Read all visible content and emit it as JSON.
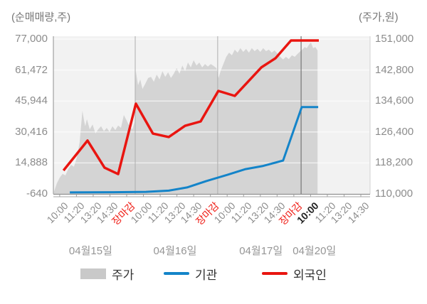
{
  "legend": [
    {
      "label": "주가",
      "type": "area",
      "color": "#c9c9c9"
    },
    {
      "label": "기관",
      "type": "line",
      "color": "#1484c9"
    },
    {
      "label": "외국인",
      "type": "line",
      "color": "#e91510"
    }
  ],
  "chart_data": {
    "type": "area+line",
    "title": "",
    "left_axis": {
      "label": "(순매매량,주)",
      "ticks": [
        77000,
        61472,
        45944,
        30416,
        14888,
        -640
      ],
      "range": [
        -640,
        77000
      ]
    },
    "right_axis": {
      "label": "(주가,원)",
      "ticks": [
        151000,
        142800,
        134600,
        126400,
        118200,
        110000
      ],
      "range": [
        110000,
        151000
      ]
    },
    "x_ticks": [
      {
        "label": "10:00",
        "pct": 2.0,
        "style": "normal"
      },
      {
        "label": "11:20",
        "pct": 7.3,
        "style": "normal"
      },
      {
        "label": "13:20",
        "pct": 12.6,
        "style": "normal"
      },
      {
        "label": "14:30",
        "pct": 17.9,
        "style": "normal"
      },
      {
        "label": "장마감",
        "pct": 23.2,
        "style": "close"
      },
      {
        "label": "10:00",
        "pct": 28.5,
        "style": "normal"
      },
      {
        "label": "11:20",
        "pct": 33.8,
        "style": "normal"
      },
      {
        "label": "13:20",
        "pct": 39.1,
        "style": "normal"
      },
      {
        "label": "14:30",
        "pct": 44.4,
        "style": "normal"
      },
      {
        "label": "장마감",
        "pct": 49.7,
        "style": "close"
      },
      {
        "label": "10:00",
        "pct": 55.0,
        "style": "normal"
      },
      {
        "label": "11:20",
        "pct": 60.2,
        "style": "normal"
      },
      {
        "label": "13:20",
        "pct": 65.5,
        "style": "normal"
      },
      {
        "label": "14:30",
        "pct": 70.8,
        "style": "normal"
      },
      {
        "label": "장마감",
        "pct": 76.1,
        "style": "close"
      },
      {
        "label": "10:00",
        "pct": 81.4,
        "style": "current"
      },
      {
        "label": "11:20",
        "pct": 86.7,
        "style": "normal"
      },
      {
        "label": "13:20",
        "pct": 92.0,
        "style": "normal"
      },
      {
        "label": "14:30",
        "pct": 97.3,
        "style": "normal"
      }
    ],
    "dates": [
      {
        "label": "04월15일",
        "pct": 11.8
      },
      {
        "label": "04월16일",
        "pct": 38.5
      },
      {
        "label": "04월17일",
        "pct": 65.7
      },
      {
        "label": "04월20일",
        "pct": 82.6
      }
    ],
    "day_separators_pct": [
      25.9,
      52.0
    ],
    "current_separator_pct": 78.4,
    "colors": {
      "plot_bg": "#f2f2f2",
      "area_fill": "#d4d4d4",
      "gridline": "rgba(255,255,255,0.6)",
      "day_separator": "#aeaeae",
      "current_separator": "#757575",
      "axis_line": "#8f8f8f",
      "right_border": "#d2d2d2",
      "institution_line": "#1484c9",
      "foreigner_line": "#e91510"
    },
    "series": {
      "price": {
        "name": "주가",
        "axis": "right",
        "type": "area",
        "unit": "원",
        "points": [
          [
            0.2,
            110600
          ],
          [
            1.1,
            112800
          ],
          [
            2.0,
            114300
          ],
          [
            2.9,
            115300
          ],
          [
            3.8,
            114900
          ],
          [
            4.7,
            116600
          ],
          [
            5.6,
            117700
          ],
          [
            6.5,
            117200
          ],
          [
            7.4,
            119600
          ],
          [
            8.3,
            123700
          ],
          [
            9.2,
            132000
          ],
          [
            9.7,
            129400
          ],
          [
            10.1,
            127900
          ],
          [
            10.6,
            129800
          ],
          [
            11.5,
            127100
          ],
          [
            12.4,
            128400
          ],
          [
            13.3,
            126000
          ],
          [
            14.2,
            127100
          ],
          [
            15.1,
            127900
          ],
          [
            16.0,
            126600
          ],
          [
            16.9,
            127500
          ],
          [
            17.8,
            126400
          ],
          [
            18.7,
            127900
          ],
          [
            19.6,
            126900
          ],
          [
            20.5,
            128100
          ],
          [
            21.4,
            127500
          ],
          [
            22.3,
            130900
          ],
          [
            23.2,
            129400
          ],
          [
            24.1,
            127900
          ],
          [
            25.0,
            127100
          ],
          [
            25.7,
            129000
          ],
          [
            26.1,
            142500
          ],
          [
            26.8,
            138800
          ],
          [
            27.5,
            140300
          ],
          [
            28.2,
            137800
          ],
          [
            29.1,
            139200
          ],
          [
            30.0,
            140700
          ],
          [
            30.9,
            141000
          ],
          [
            31.8,
            139700
          ],
          [
            32.7,
            141600
          ],
          [
            33.6,
            140300
          ],
          [
            34.5,
            142500
          ],
          [
            35.4,
            141000
          ],
          [
            36.3,
            142200
          ],
          [
            37.2,
            140700
          ],
          [
            38.1,
            141800
          ],
          [
            39.0,
            143300
          ],
          [
            39.9,
            141800
          ],
          [
            40.8,
            144000
          ],
          [
            41.7,
            142500
          ],
          [
            42.6,
            144800
          ],
          [
            43.5,
            143500
          ],
          [
            44.4,
            145400
          ],
          [
            45.3,
            144000
          ],
          [
            46.2,
            144800
          ],
          [
            47.1,
            143500
          ],
          [
            48.0,
            144400
          ],
          [
            48.9,
            143700
          ],
          [
            49.8,
            144400
          ],
          [
            50.7,
            143900
          ],
          [
            51.6,
            143300
          ],
          [
            52.3,
            140700
          ],
          [
            52.9,
            142500
          ],
          [
            53.8,
            144400
          ],
          [
            54.7,
            146300
          ],
          [
            55.6,
            147400
          ],
          [
            56.5,
            146700
          ],
          [
            57.4,
            148200
          ],
          [
            58.3,
            147400
          ],
          [
            59.2,
            148600
          ],
          [
            60.1,
            147600
          ],
          [
            61.0,
            148400
          ],
          [
            61.9,
            147400
          ],
          [
            62.8,
            148600
          ],
          [
            63.7,
            147800
          ],
          [
            64.6,
            148400
          ],
          [
            65.5,
            147600
          ],
          [
            66.4,
            148600
          ],
          [
            67.3,
            147800
          ],
          [
            68.2,
            148200
          ],
          [
            69.1,
            147400
          ],
          [
            70.0,
            148000
          ],
          [
            70.9,
            147200
          ],
          [
            71.8,
            146300
          ],
          [
            72.7,
            145600
          ],
          [
            73.6,
            146300
          ],
          [
            74.5,
            145700
          ],
          [
            75.5,
            146700
          ],
          [
            76.4,
            146300
          ],
          [
            77.3,
            147100
          ],
          [
            78.2,
            147800
          ],
          [
            78.8,
            148200
          ],
          [
            79.5,
            148900
          ],
          [
            80.2,
            148600
          ],
          [
            80.9,
            149500
          ],
          [
            81.5,
            150100
          ],
          [
            82.2,
            148600
          ],
          [
            82.9,
            148900
          ],
          [
            83.6,
            148000
          ]
        ]
      },
      "institution": {
        "name": "기관",
        "axis": "left",
        "type": "line",
        "unit": "주",
        "points": [
          [
            5.2,
            100
          ],
          [
            19.1,
            200
          ],
          [
            29.3,
            400
          ],
          [
            36.5,
            1000
          ],
          [
            42.3,
            2600
          ],
          [
            48.4,
            5800
          ],
          [
            55.2,
            9000
          ],
          [
            60.8,
            11800
          ],
          [
            66.4,
            13400
          ],
          [
            72.7,
            16100
          ],
          [
            78.6,
            42900
          ],
          [
            83.8,
            42900
          ]
        ]
      },
      "foreigner": {
        "name": "외국인",
        "axis": "left",
        "type": "line",
        "unit": "주",
        "points": [
          [
            3.2,
            11100
          ],
          [
            10.8,
            26100
          ],
          [
            16.2,
            12500
          ],
          [
            20.5,
            9300
          ],
          [
            26.1,
            44600
          ],
          [
            31.5,
            29600
          ],
          [
            36.5,
            27900
          ],
          [
            41.7,
            33500
          ],
          [
            46.6,
            35700
          ],
          [
            52.2,
            51000
          ],
          [
            57.4,
            48500
          ],
          [
            65.8,
            62800
          ],
          [
            70.3,
            67400
          ],
          [
            75.2,
            76300
          ],
          [
            84.0,
            76300
          ]
        ]
      }
    }
  }
}
